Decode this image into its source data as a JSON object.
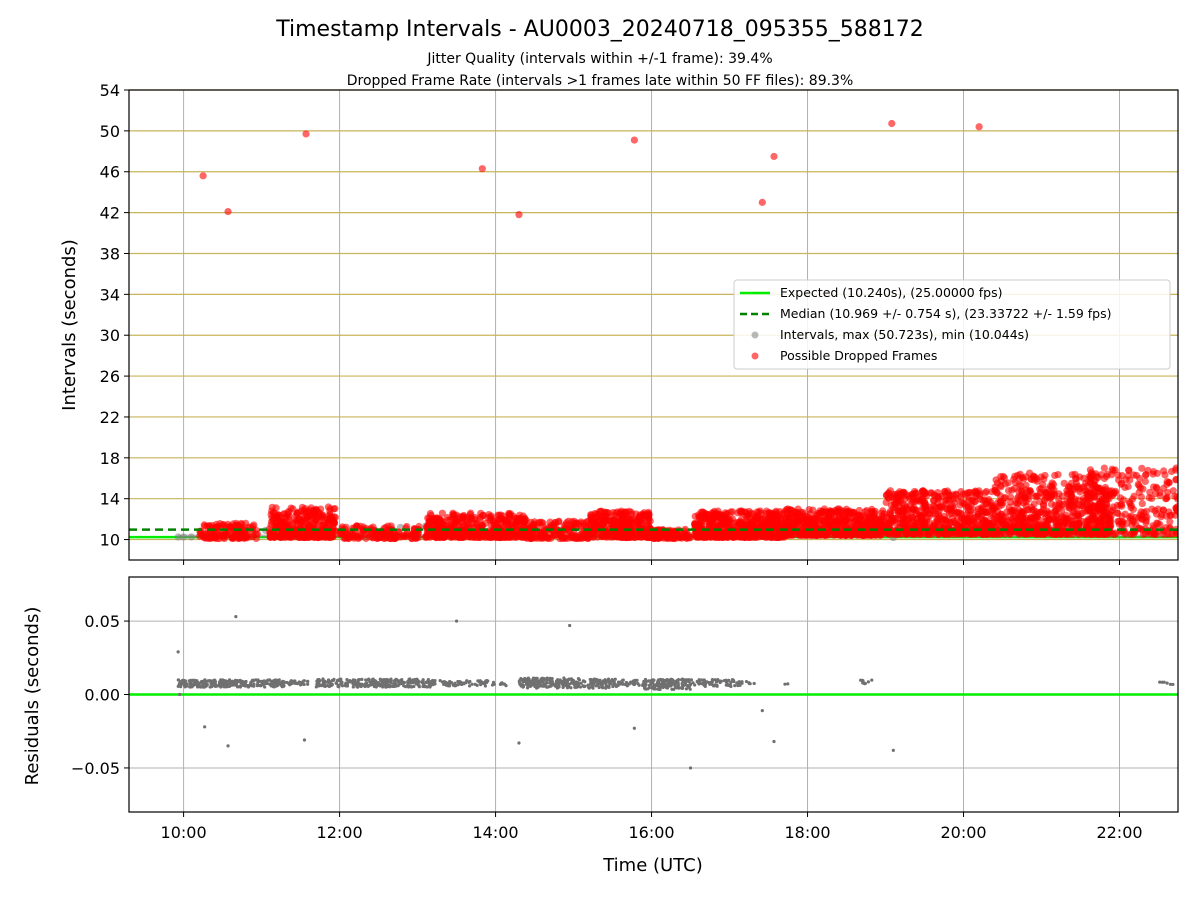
{
  "title": "Timestamp Intervals - AU0003_20240718_095355_588172",
  "subtitle_line1": "Jitter Quality (intervals within +/-1 frame): 39.4%",
  "subtitle_line2": "Dropped Frame Rate (intervals >1 frames late within 50 FF files): 89.3%",
  "colors": {
    "expected": "#00ee00",
    "median": "#008000",
    "intervals": "#808080",
    "dropped": "#ff0000",
    "hgrid": "#c8b45a",
    "vgrid": "#b0b0b0",
    "residual_points": "#707070"
  },
  "chart_data": [
    {
      "type": "scatter",
      "ylabel": "Intervals (seconds)",
      "xlabel": "",
      "x_unit": "hours UTC",
      "xlim": [
        9.3,
        22.75
      ],
      "ylim": [
        8,
        54
      ],
      "yticks": [
        "10",
        "14",
        "18",
        "22",
        "26",
        "30",
        "34",
        "38",
        "42",
        "46",
        "50",
        "54"
      ],
      "grid": true,
      "legend_position": "center-right",
      "legend": [
        "Expected (10.240s), (25.00000 fps)",
        "Median (10.969 +/- 0.754 s), (23.33722 +/- 1.59 fps)",
        "Intervals, max (50.723s), min (10.044s)",
        "Possible Dropped Frames"
      ],
      "expected_interval": 10.24,
      "median_interval": 10.969,
      "dropped_outliers": [
        {
          "x": 10.25,
          "y": 45.6
        },
        {
          "x": 10.57,
          "y": 42.1
        },
        {
          "x": 11.57,
          "y": 49.7
        },
        {
          "x": 13.83,
          "y": 46.3
        },
        {
          "x": 14.3,
          "y": 41.8
        },
        {
          "x": 15.78,
          "y": 49.1
        },
        {
          "x": 17.42,
          "y": 43.0
        },
        {
          "x": 17.57,
          "y": 47.5
        },
        {
          "x": 19.08,
          "y": 50.72
        },
        {
          "x": 20.2,
          "y": 50.4
        }
      ],
      "dropped_clusters": [
        {
          "x0": 10.2,
          "x1": 10.95,
          "ymin": 10.1,
          "ymax": 11.6,
          "count": 140
        },
        {
          "x0": 11.1,
          "x1": 11.95,
          "ymin": 10.2,
          "ymax": 13.2,
          "count": 320
        },
        {
          "x0": 12.0,
          "x1": 13.05,
          "ymin": 10.1,
          "ymax": 11.4,
          "count": 150
        },
        {
          "x0": 13.1,
          "x1": 14.4,
          "ymin": 10.2,
          "ymax": 12.6,
          "count": 420
        },
        {
          "x0": 14.4,
          "x1": 15.2,
          "ymin": 10.1,
          "ymax": 11.8,
          "count": 150
        },
        {
          "x0": 15.2,
          "x1": 16.0,
          "ymin": 10.2,
          "ymax": 12.8,
          "count": 340
        },
        {
          "x0": 16.0,
          "x1": 16.5,
          "ymin": 10.1,
          "ymax": 11.0,
          "count": 90
        },
        {
          "x0": 16.55,
          "x1": 17.7,
          "ymin": 10.2,
          "ymax": 12.8,
          "count": 520
        },
        {
          "x0": 17.7,
          "x1": 19.0,
          "ymin": 10.4,
          "ymax": 13.0,
          "count": 520
        },
        {
          "x0": 19.0,
          "x1": 20.4,
          "ymin": 10.5,
          "ymax": 14.8,
          "count": 600
        },
        {
          "x0": 20.4,
          "x1": 21.9,
          "ymin": 10.5,
          "ymax": 16.5,
          "count": 650
        },
        {
          "x0": 21.6,
          "x1": 22.75,
          "ymin": 10.5,
          "ymax": 17.0,
          "count": 260
        }
      ],
      "interval_points": [
        {
          "x": 9.93,
          "y": 10.25
        },
        {
          "x": 10.0,
          "y": 10.25
        },
        {
          "x": 10.1,
          "y": 10.25
        },
        {
          "x": 11.05,
          "y": 10.9
        },
        {
          "x": 12.33,
          "y": 10.3
        },
        {
          "x": 12.78,
          "y": 11.2
        },
        {
          "x": 13.1,
          "y": 11.3
        },
        {
          "x": 16.5,
          "y": 10.2
        },
        {
          "x": 17.65,
          "y": 10.2
        },
        {
          "x": 19.1,
          "y": 10.2
        }
      ]
    },
    {
      "type": "scatter",
      "ylabel": "Residuals (seconds)",
      "xlabel": "Time (UTC)",
      "xlim": [
        9.3,
        22.75
      ],
      "ylim": [
        -0.08,
        0.08
      ],
      "yticks": [
        "−0.05",
        "0.00",
        "0.05"
      ],
      "xticks": [
        "10:00",
        "12:00",
        "14:00",
        "16:00",
        "18:00",
        "20:00",
        "22:00"
      ],
      "grid": true,
      "zero_line": 0,
      "residual_outliers": [
        {
          "x": 9.93,
          "y": 0.029
        },
        {
          "x": 10.27,
          "y": -0.022
        },
        {
          "x": 10.57,
          "y": -0.035
        },
        {
          "x": 10.67,
          "y": 0.053
        },
        {
          "x": 11.55,
          "y": -0.031
        },
        {
          "x": 13.5,
          "y": 0.05
        },
        {
          "x": 14.3,
          "y": -0.033
        },
        {
          "x": 14.95,
          "y": 0.047
        },
        {
          "x": 15.78,
          "y": -0.023
        },
        {
          "x": 16.5,
          "y": -0.05
        },
        {
          "x": 17.42,
          "y": -0.011
        },
        {
          "x": 17.57,
          "y": -0.032
        },
        {
          "x": 19.1,
          "y": -0.038
        },
        {
          "x": 9.95,
          "y": 0.0
        }
      ],
      "residual_bands": [
        {
          "x0": 9.93,
          "x1": 11.3,
          "y": 0.0075,
          "spread": 0.0025,
          "count": 260
        },
        {
          "x0": 11.3,
          "x1": 11.6,
          "y": 0.008,
          "spread": 0.0015,
          "count": 25
        },
        {
          "x0": 11.7,
          "x1": 13.2,
          "y": 0.0078,
          "spread": 0.0028,
          "count": 270
        },
        {
          "x0": 13.2,
          "x1": 13.9,
          "y": 0.0078,
          "spread": 0.002,
          "count": 60
        },
        {
          "x0": 13.95,
          "x1": 14.15,
          "y": 0.0075,
          "spread": 0.0015,
          "count": 10
        },
        {
          "x0": 14.3,
          "x1": 15.55,
          "y": 0.0078,
          "spread": 0.0035,
          "count": 260
        },
        {
          "x0": 15.55,
          "x1": 15.9,
          "y": 0.0078,
          "spread": 0.002,
          "count": 30
        },
        {
          "x0": 15.9,
          "x1": 16.5,
          "y": 0.007,
          "spread": 0.0035,
          "count": 150
        },
        {
          "x0": 16.5,
          "x1": 17.1,
          "y": 0.0078,
          "spread": 0.0025,
          "count": 60
        },
        {
          "x0": 17.1,
          "x1": 17.35,
          "y": 0.0078,
          "spread": 0.002,
          "count": 12
        },
        {
          "x0": 17.7,
          "x1": 17.75,
          "y": 0.007,
          "spread": 0.001,
          "count": 2
        },
        {
          "x0": 18.65,
          "x1": 18.9,
          "y": 0.0085,
          "spread": 0.0015,
          "count": 10
        },
        {
          "x0": 22.45,
          "x1": 22.75,
          "y": 0.008,
          "spread": 0.0012,
          "count": 6
        }
      ]
    }
  ]
}
